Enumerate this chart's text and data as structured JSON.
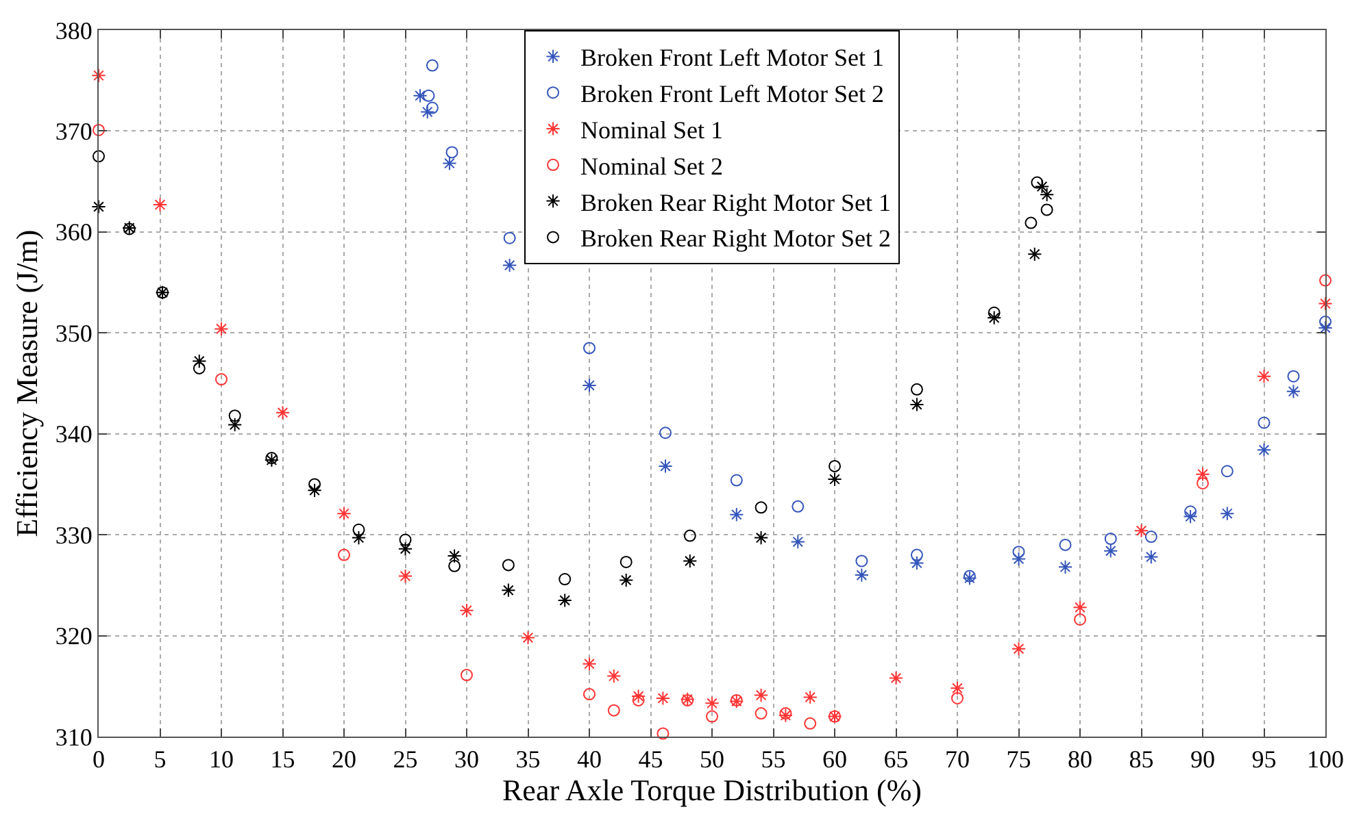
{
  "chart_data": {
    "type": "scatter",
    "xlabel": "Rear Axle Torque Distribution (%)",
    "ylabel": "Efficiency Measure (J/m)",
    "xlim": [
      0,
      100
    ],
    "xticks": [
      0,
      5,
      10,
      15,
      20,
      25,
      30,
      35,
      40,
      45,
      50,
      55,
      60,
      65,
      70,
      75,
      80,
      85,
      90,
      95,
      100
    ],
    "ylim": [
      310,
      380
    ],
    "yticks": [
      310,
      320,
      330,
      340,
      350,
      360,
      370,
      380
    ],
    "grid": true,
    "legend": "top",
    "series": [
      {
        "name": "Broken Front Left Motor Set 1",
        "color": "#3355bb",
        "marker": "cross",
        "x": [
          26.2,
          26.8,
          28.6,
          33.5,
          40,
          46.2,
          52,
          57,
          62.2,
          66.7,
          71,
          75,
          78.8,
          82.5,
          85.8,
          89,
          92,
          95,
          97.4,
          100
        ],
        "values": [
          373.5,
          371.9,
          366.8,
          356.7,
          344.8,
          336.8,
          332,
          329.3,
          326,
          327.2,
          325.7,
          327.6,
          326.8,
          328.4,
          327.8,
          331.8,
          332.1,
          338.4,
          344.2,
          350.5
        ]
      },
      {
        "name": "Broken Front Left Motor Set 2",
        "color": "#3355bb",
        "marker": "circle",
        "x": [
          27.2,
          26.9,
          27.2,
          28.8,
          33.5,
          40,
          46.2,
          52,
          57,
          62.2,
          66.7,
          71,
          75,
          78.8,
          82.5,
          85.8,
          89,
          92,
          95,
          97.4,
          100
        ],
        "values": [
          376.5,
          373.5,
          372.3,
          367.9,
          359.4,
          348.5,
          340.1,
          335.4,
          332.8,
          327.4,
          328,
          325.9,
          328.3,
          329,
          329.6,
          329.8,
          332.3,
          336.3,
          341.1,
          345.7,
          351.1
        ]
      },
      {
        "name": "Nominal Set 1",
        "color": "#ff3333",
        "marker": "cross",
        "x": [
          0,
          5,
          10,
          15,
          20,
          25,
          30,
          35,
          40,
          42,
          44,
          46,
          48,
          50,
          52,
          54,
          56,
          58,
          60,
          65,
          70,
          75,
          80,
          85,
          90,
          95,
          100
        ],
        "values": [
          375.5,
          362.7,
          350.4,
          342.1,
          332.1,
          325.9,
          322.5,
          319.8,
          317.2,
          316,
          314,
          313.8,
          313.7,
          313.3,
          313.5,
          314.1,
          312.1,
          313.9,
          312,
          315.8,
          314.8,
          318.7,
          322.8,
          330.4,
          336,
          345.7,
          352.9
        ]
      },
      {
        "name": "Nominal Set 2",
        "color": "#ff3333",
        "marker": "circle",
        "x": [
          0,
          10,
          20,
          30,
          40,
          42,
          44,
          46,
          48,
          50,
          52,
          54,
          56,
          58,
          60,
          70,
          80,
          90,
          100
        ],
        "values": [
          370.1,
          345.4,
          328,
          316.1,
          314.2,
          312.6,
          313.6,
          310.3,
          313.6,
          312,
          313.6,
          312.3,
          312.3,
          311.3,
          312,
          313.8,
          321.6,
          335.1,
          355.2
        ]
      },
      {
        "name": "Broken Rear Right Motor Set 1",
        "color": "#000000",
        "marker": "cross",
        "x": [
          0,
          2.5,
          5.2,
          8.2,
          11.1,
          14.1,
          17.6,
          21.2,
          25,
          29,
          33.4,
          38,
          43,
          48.2,
          54,
          60,
          66.7,
          73,
          76.3,
          77.3,
          76.9
        ],
        "values": [
          362.5,
          360.4,
          354,
          347.2,
          340.9,
          337.4,
          334.4,
          329.7,
          328.6,
          327.9,
          324.5,
          323.5,
          325.5,
          327.4,
          329.7,
          335.5,
          342.9,
          351.5,
          357.8,
          363.7,
          364.5
        ]
      },
      {
        "name": "Broken Rear Right Motor Set 2",
        "color": "#000000",
        "marker": "circle",
        "x": [
          0,
          2.5,
          5.2,
          8.2,
          11.1,
          14.1,
          17.6,
          21.2,
          25,
          29,
          33.4,
          38,
          43,
          48.2,
          54,
          60,
          66.7,
          73,
          76,
          76.5,
          77.3
        ],
        "values": [
          367.5,
          360.3,
          354,
          346.5,
          341.8,
          337.6,
          335,
          330.5,
          329.5,
          326.9,
          327,
          325.6,
          327.3,
          329.9,
          332.7,
          336.8,
          344.4,
          352,
          360.9,
          364.9,
          362.2
        ]
      }
    ]
  }
}
